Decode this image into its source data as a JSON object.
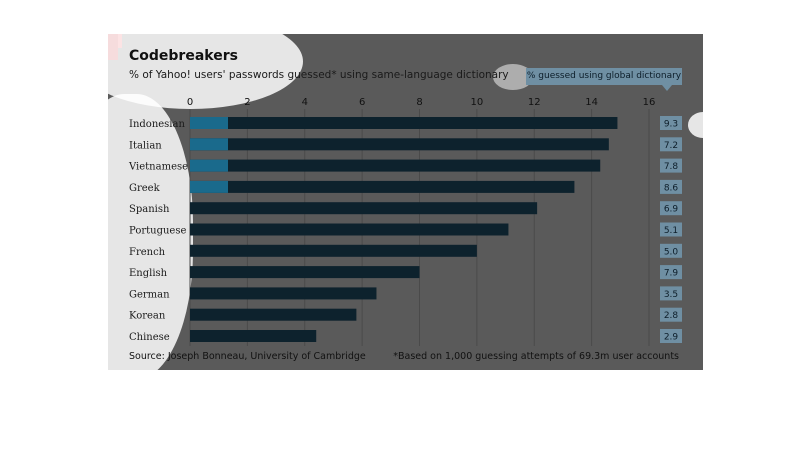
{
  "header": {
    "title": "Codebreakers",
    "subtitle": "% of Yahoo! users' passwords guessed* using same-language dictionary"
  },
  "legend": {
    "label": "% guessed using global dictionary"
  },
  "footer": {
    "source": "Source: Joseph Bonneau, University of Cambridge",
    "footnote": "*Based on 1,000 guessing attempts of 69.3m user accounts"
  },
  "colors": {
    "card": "#5a5a5a",
    "bar": "#0d222d",
    "bar_highlight": "#1a6a8c",
    "badge": "#6f8fa3",
    "accent_red": "#c4161c",
    "grid": "#4a4a4a"
  },
  "chart_data": {
    "type": "bar",
    "orientation": "horizontal",
    "title": "Codebreakers",
    "subtitle": "% of Yahoo! users' passwords guessed* using same-language dictionary",
    "xlim": [
      0,
      16
    ],
    "xticks": [
      0,
      2,
      4,
      6,
      8,
      10,
      12,
      14,
      16
    ],
    "grid": true,
    "categories": [
      "Indonesian",
      "Italian",
      "Vietnamese",
      "Greek",
      "Spanish",
      "Portuguese",
      "French",
      "English",
      "German",
      "Korean",
      "Chinese"
    ],
    "series": [
      {
        "values": [
          14.9,
          14.6,
          14.3,
          13.4,
          12.1,
          11.1,
          10.0,
          8.0,
          6.5,
          5.8,
          4.4
        ]
      },
      {
        "name": "% guessed using global dictionary",
        "values": [
          9.3,
          7.2,
          7.8,
          8.6,
          6.9,
          5.1,
          5.0,
          7.9,
          3.5,
          2.8,
          2.9
        ]
      }
    ],
    "legend": "top-right"
  }
}
